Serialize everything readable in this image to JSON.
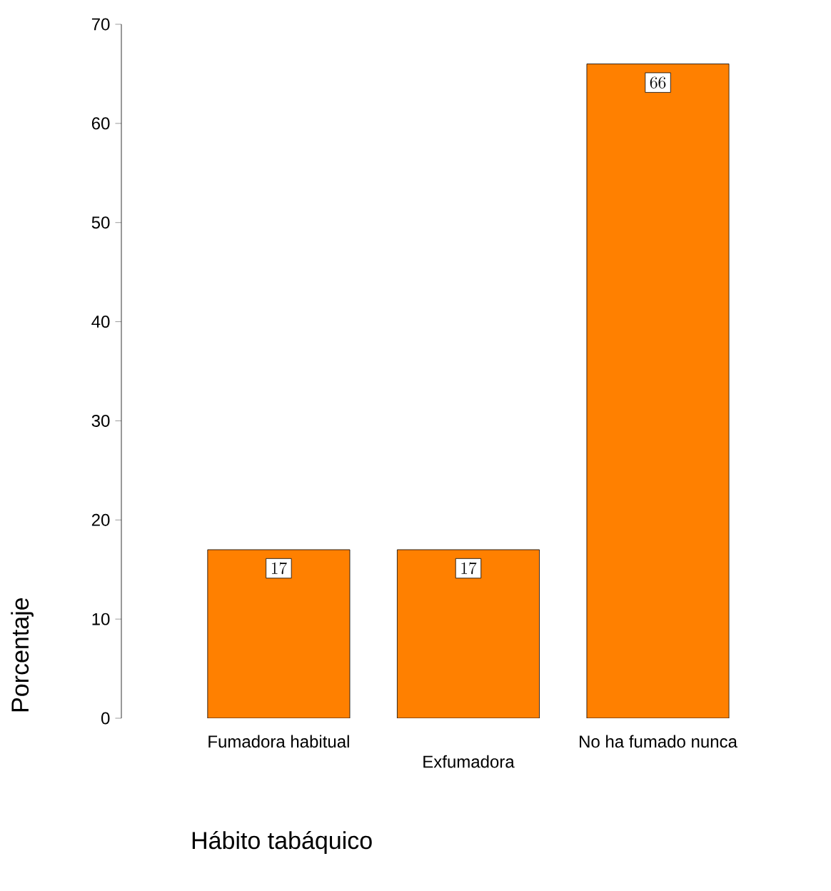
{
  "chart_data": {
    "type": "bar",
    "xlabel": "Hábito tabáquico",
    "ylabel": "Porcentaje",
    "categories": [
      "Fumadora habitual",
      "Exfumadora",
      "No ha fumado nunca"
    ],
    "values": [
      17,
      17,
      66
    ],
    "color": "#ff8000",
    "ylim": [
      0,
      70
    ],
    "yticks": [
      0,
      10,
      20,
      30,
      40,
      50,
      60,
      70
    ],
    "data_labels": true
  }
}
